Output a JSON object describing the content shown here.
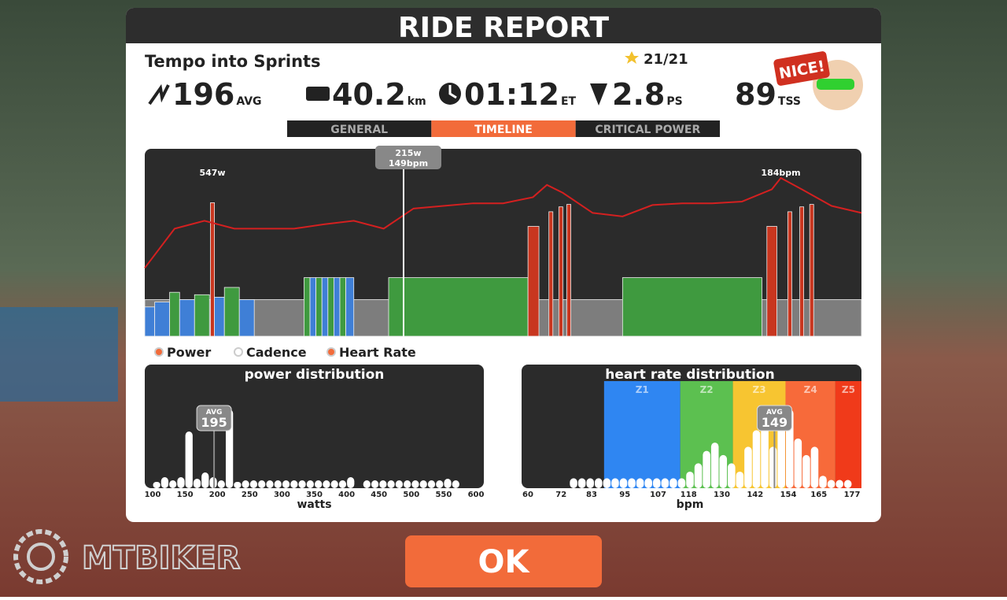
{
  "header": {
    "title": "RIDE REPORT"
  },
  "workout": {
    "name": "Tempo into Sprints",
    "stars": "21/21",
    "badge": "NICE!"
  },
  "stats": [
    {
      "value": "196",
      "unit": "AVG"
    },
    {
      "value": "40.2",
      "unit": "km"
    },
    {
      "value": "01:12",
      "unit": "ET"
    },
    {
      "value": "2.8",
      "unit": "PS"
    },
    {
      "value": "89",
      "unit": "TSS"
    }
  ],
  "tabs": {
    "items": [
      "GENERAL",
      "TIMELINE",
      "CRITICAL POWER"
    ],
    "active": 1
  },
  "timeline": {
    "xlim": [
      0,
      72
    ],
    "cursor": {
      "minute": 26,
      "power": "215w",
      "heart_rate": "149bpm"
    },
    "annotations": [
      {
        "text": "547w",
        "minute": 6.8
      },
      {
        "text": "184bpm",
        "minute": 63.9
      }
    ],
    "power": [
      {
        "start": 0,
        "end": 72,
        "watts": 150,
        "color": "#7d7d7d"
      },
      {
        "start": 0,
        "end": 1,
        "watts": 120,
        "color": "#3f7fd6"
      },
      {
        "start": 1,
        "end": 2.5,
        "watts": 140,
        "color": "#3f7fd6"
      },
      {
        "start": 2.5,
        "end": 3.5,
        "watts": 180,
        "color": "#3f9a3f"
      },
      {
        "start": 3.5,
        "end": 5,
        "watts": 150,
        "color": "#3f7fd6"
      },
      {
        "start": 5,
        "end": 6.5,
        "watts": 170,
        "color": "#3f9a3f"
      },
      {
        "start": 6.6,
        "end": 7,
        "watts": 547,
        "color": "#c8361f"
      },
      {
        "start": 7,
        "end": 8,
        "watts": 160,
        "color": "#3f7fd6"
      },
      {
        "start": 8,
        "end": 9.5,
        "watts": 200,
        "color": "#3f9a3f"
      },
      {
        "start": 9.5,
        "end": 11,
        "watts": 150,
        "color": "#3f7fd6"
      },
      {
        "start": 16,
        "end": 16.6,
        "watts": 240,
        "color": "#3f9a3f"
      },
      {
        "start": 16.6,
        "end": 17.2,
        "watts": 240,
        "color": "#3f7fd6"
      },
      {
        "start": 17.2,
        "end": 17.8,
        "watts": 240,
        "color": "#3f9a3f"
      },
      {
        "start": 17.8,
        "end": 18.4,
        "watts": 240,
        "color": "#3f7fd6"
      },
      {
        "start": 18.4,
        "end": 19,
        "watts": 240,
        "color": "#3f9a3f"
      },
      {
        "start": 19,
        "end": 19.6,
        "watts": 240,
        "color": "#3f7fd6"
      },
      {
        "start": 19.6,
        "end": 20.2,
        "watts": 240,
        "color": "#3f9a3f"
      },
      {
        "start": 20.2,
        "end": 21,
        "watts": 240,
        "color": "#3f7fd6"
      },
      {
        "start": 24.5,
        "end": 38.5,
        "watts": 240,
        "color": "#3f9a3f"
      },
      {
        "start": 38.5,
        "end": 39.6,
        "watts": 450,
        "color": "#c8361f"
      },
      {
        "start": 40.6,
        "end": 41,
        "watts": 510,
        "color": "#c8361f"
      },
      {
        "start": 41.6,
        "end": 42,
        "watts": 530,
        "color": "#c8361f"
      },
      {
        "start": 42.4,
        "end": 42.8,
        "watts": 540,
        "color": "#c8361f"
      },
      {
        "start": 48,
        "end": 62,
        "watts": 240,
        "color": "#3f9a3f"
      },
      {
        "start": 62.5,
        "end": 63.5,
        "watts": 450,
        "color": "#c8361f"
      },
      {
        "start": 64.6,
        "end": 65,
        "watts": 510,
        "color": "#c8361f"
      },
      {
        "start": 65.8,
        "end": 66.2,
        "watts": 530,
        "color": "#c8361f"
      },
      {
        "start": 66.8,
        "end": 67.2,
        "watts": 540,
        "color": "#c8361f"
      }
    ],
    "hr_x": [
      0,
      3,
      6,
      9,
      12,
      15,
      18,
      21,
      24,
      27,
      30,
      33,
      36,
      39,
      40.4,
      42,
      45,
      48,
      51,
      54,
      57,
      60,
      63,
      63.9,
      66,
      69,
      72
    ],
    "heart_rate": [
      81,
      126,
      135,
      126,
      126,
      126,
      131,
      135,
      126,
      149,
      152,
      155,
      155,
      162,
      176,
      167,
      144,
      140,
      153,
      155,
      155,
      157,
      171,
      184,
      171,
      152,
      144
    ],
    "hr_color": "#d42020"
  },
  "legend": [
    "Power",
    "Cadence",
    "Heart Rate"
  ],
  "power_distribution": {
    "title": "power distribution",
    "avg_label": "AVG",
    "avg": 195,
    "xlim": [
      100,
      600
    ],
    "xticks": [
      100,
      150,
      200,
      250,
      300,
      350,
      400,
      450,
      500,
      550,
      600
    ],
    "xlabel": "watts",
    "bin_start": 100,
    "bin_width": 12.5,
    "values": [
      8,
      14,
      10,
      14,
      72,
      12,
      20,
      14,
      10,
      100,
      8,
      10,
      10,
      10,
      10,
      10,
      10,
      10,
      10,
      10,
      10,
      10,
      10,
      10,
      14,
      0,
      10,
      10,
      10,
      10,
      10,
      10,
      10,
      10,
      10,
      10,
      12,
      10,
      0
    ]
  },
  "hr_distribution": {
    "title": "heart rate distribution",
    "avg_label": "AVG",
    "avg": 149,
    "xlim": [
      60,
      177
    ],
    "xticks": [
      60,
      72,
      83,
      95,
      107,
      118,
      130,
      142,
      154,
      165,
      177
    ],
    "xlabel": "bpm",
    "bin_start": 75,
    "bin_width": 3,
    "zones": [
      {
        "name": "Z1",
        "from": 87.5,
        "color": "#2f86f2"
      },
      {
        "name": "Z2",
        "from": 115,
        "color": "#5cc050"
      },
      {
        "name": "Z3",
        "from": 134,
        "color": "#f7c531"
      },
      {
        "name": "Z4",
        "from": 153,
        "color": "#f76a3a"
      },
      {
        "name": "Z5",
        "from": 171,
        "color": "#f03a1a"
      }
    ],
    "values": [
      12,
      12,
      12,
      12,
      12,
      12,
      12,
      12,
      12,
      12,
      12,
      12,
      12,
      12,
      20,
      30,
      45,
      55,
      40,
      30,
      20,
      50,
      70,
      80,
      50,
      75,
      95,
      60,
      40,
      50,
      15,
      10,
      10,
      10
    ]
  },
  "button": "OK",
  "watermark": "MTBIKER"
}
